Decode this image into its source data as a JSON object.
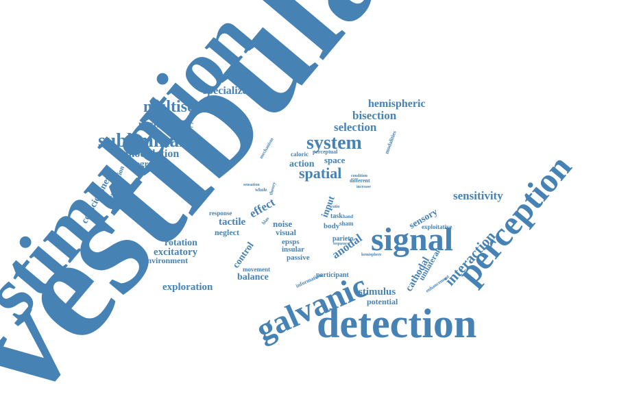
{
  "color": "#4682b4",
  "background": "#ffffff",
  "words": [
    "vestibular",
    "stimulation",
    "detection",
    "perception",
    "galvanic",
    "signal",
    "system",
    "subliminal",
    "multisensory",
    "specialization",
    "spatial",
    "sensitivity",
    "interaction",
    "hemispheric",
    "bisection",
    "selection",
    "postsynaptic",
    "modulation",
    "integration",
    "consciousness",
    "exploitation",
    "action",
    "space",
    "tactile",
    "neglect",
    "effect",
    "rotation",
    "excitatory",
    "environment",
    "exploration",
    "control",
    "balance",
    "movement",
    "anodal",
    "cathodal",
    "unilateral",
    "stimulus",
    "potential",
    "sensory",
    "exploitative",
    "input",
    "noise",
    "visual",
    "epsps",
    "insular",
    "passive",
    "body",
    "parieto",
    "participant",
    "task",
    "sham",
    "response",
    "information",
    "different",
    "caloric",
    "perceptual",
    "modalities",
    "condition",
    "increase",
    "enhancement",
    "mechanism",
    "whole",
    "sensation",
    "hand",
    "ratio",
    "bias",
    "sequence",
    "theory",
    "hemisphere"
  ]
}
